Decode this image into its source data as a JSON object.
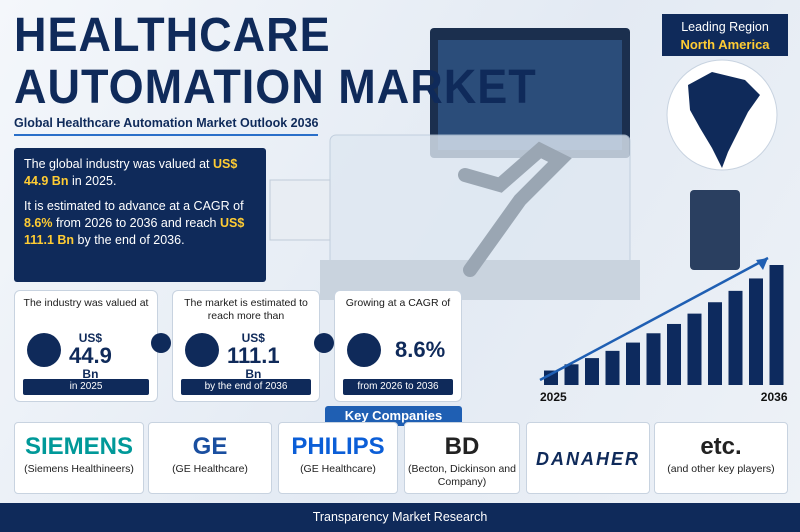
{
  "header": {
    "title_line1": "HEALTHCARE",
    "title_line2": "AUTOMATION MARKET",
    "subtitle": "Global Healthcare Automation Market Outlook 2036"
  },
  "summary": {
    "paragraphs": [
      [
        {
          "text": "The global industry was valued at ",
          "highlight": false
        },
        {
          "text": "US$ 44.9 Bn",
          "highlight": true
        },
        {
          "text": " in 2025.",
          "highlight": false
        }
      ],
      [
        {
          "text": "It is estimated to advance at a CAGR of ",
          "highlight": false
        },
        {
          "text": "8.6%",
          "highlight": true
        },
        {
          "text": " from 2026 to 2036 and reach ",
          "highlight": false
        },
        {
          "text": "US$ 111.1 Bn",
          "highlight": true
        },
        {
          "text": " by the end of 2036.",
          "highlight": false
        }
      ]
    ]
  },
  "leading_region": {
    "label": "Leading Region",
    "value": "North America"
  },
  "stats": [
    {
      "caption": "The industry was valued at",
      "prefix": "US$",
      "value": "44.9",
      "unit": "Bn",
      "period": "in 2025"
    },
    {
      "caption": "The market is estimated to reach more than",
      "prefix": "US$",
      "value": "111.1",
      "unit": "Bn",
      "period": "by the end of 2036"
    },
    {
      "caption": "Growing at a CAGR of",
      "value": "8.6%",
      "period": "from 2026 to 2036"
    }
  ],
  "growth_chart": {
    "categories": [
      "2025",
      null,
      null,
      null,
      null,
      null,
      null,
      null,
      null,
      null,
      null,
      "2036"
    ],
    "values": [
      14,
      20,
      26,
      33,
      41,
      50,
      59,
      69,
      80,
      91,
      103,
      116
    ],
    "color": "#0d2a5e"
  },
  "key_companies": {
    "title": "Key Companies",
    "companies": [
      {
        "logo": "SIEMENS",
        "name": "(Siemens Healthineers)"
      },
      {
        "logo": "GE",
        "name": "(GE Healthcare)"
      },
      {
        "logo": "PHILIPS",
        "name": "(GE Healthcare)"
      },
      {
        "logo": "BD",
        "name": "(Becton, Dickinson and Company)"
      },
      {
        "logo": "DANAHER"
      },
      {
        "logo": "etc.",
        "name": "(and other key players)"
      }
    ]
  },
  "footer": {
    "brand": "Transparency Market Research"
  }
}
